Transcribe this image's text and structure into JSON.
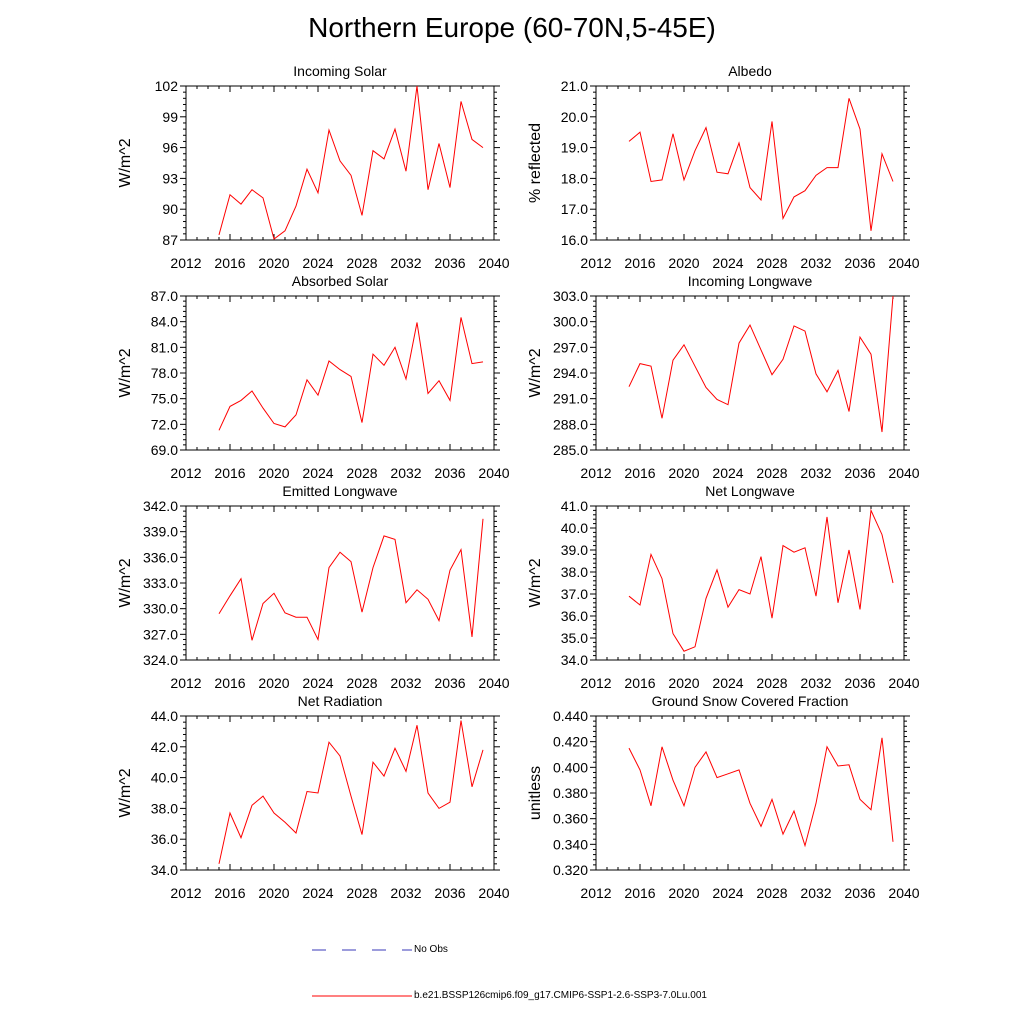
{
  "title": "Northern Europe (60-70N,5-45E)",
  "x_ticks": [
    "2012",
    "2016",
    "2020",
    "2024",
    "2028",
    "2032",
    "2036",
    "2040"
  ],
  "legend": {
    "obs_label": "No Obs",
    "obs_color": "#3a3ab8",
    "model_label": "b.e21.BSSP126cmip6.f09_g17.CMIP6-SSP1-2.6-SSP3-7.0Lu.001",
    "model_color": "#ff0000"
  },
  "chart_data": [
    {
      "type": "line",
      "title": "Incoming Solar",
      "ylabel": "W/m^2",
      "xlim": [
        2012,
        2040
      ],
      "ylim": [
        87,
        102
      ],
      "yticks": [
        87,
        90,
        93,
        96,
        99,
        102
      ],
      "ytick_labels": [
        "87",
        "90",
        "93",
        "96",
        "99",
        "102"
      ],
      "x": [
        2015,
        2016,
        2017,
        2018,
        2019,
        2020,
        2021,
        2022,
        2023,
        2024,
        2025,
        2026,
        2027,
        2028,
        2029,
        2030,
        2031,
        2032,
        2033,
        2034,
        2035,
        2036,
        2037,
        2038,
        2039
      ],
      "series": [
        {
          "values": [
            87.5,
            91.4,
            90.5,
            91.9,
            91.1,
            87.1,
            87.9,
            90.3,
            93.9,
            91.6,
            97.7,
            94.7,
            93.3,
            89.4,
            95.7,
            94.9,
            97.8,
            93.7,
            102.0,
            91.9,
            96.4,
            92.1,
            100.5,
            96.8,
            96.0
          ]
        }
      ]
    },
    {
      "type": "line",
      "title": "Albedo",
      "ylabel": "% reflected",
      "xlim": [
        2012,
        2040
      ],
      "ylim": [
        16.0,
        21.0
      ],
      "yticks": [
        16,
        17,
        18,
        19,
        20,
        21
      ],
      "ytick_labels": [
        "16.0",
        "17.0",
        "18.0",
        "19.0",
        "20.0",
        "21.0"
      ],
      "x": [
        2015,
        2016,
        2017,
        2018,
        2019,
        2020,
        2021,
        2022,
        2023,
        2024,
        2025,
        2026,
        2027,
        2028,
        2029,
        2030,
        2031,
        2032,
        2033,
        2034,
        2035,
        2036,
        2037,
        2038,
        2039
      ],
      "series": [
        {
          "values": [
            19.2,
            19.5,
            17.9,
            17.95,
            19.45,
            17.95,
            18.9,
            19.65,
            18.2,
            18.15,
            19.15,
            17.7,
            17.3,
            19.85,
            16.7,
            17.4,
            17.6,
            18.1,
            18.35,
            18.35,
            20.6,
            19.6,
            16.3,
            18.8,
            17.9
          ]
        }
      ]
    },
    {
      "type": "line",
      "title": "Absorbed Solar",
      "ylabel": "W/m^2",
      "xlim": [
        2012,
        2040
      ],
      "ylim": [
        69.0,
        87.0
      ],
      "yticks": [
        69,
        72,
        75,
        78,
        81,
        84,
        87
      ],
      "ytick_labels": [
        "69.0",
        "72.0",
        "75.0",
        "78.0",
        "81.0",
        "84.0",
        "87.0"
      ],
      "x": [
        2015,
        2016,
        2017,
        2018,
        2019,
        2020,
        2021,
        2022,
        2023,
        2024,
        2025,
        2026,
        2027,
        2028,
        2029,
        2030,
        2031,
        2032,
        2033,
        2034,
        2035,
        2036,
        2037,
        2038,
        2039
      ],
      "series": [
        {
          "values": [
            71.3,
            74.1,
            74.8,
            75.9,
            73.9,
            72.1,
            71.7,
            73.1,
            77.2,
            75.4,
            79.4,
            78.4,
            77.6,
            72.2,
            80.2,
            78.9,
            81.0,
            77.3,
            83.9,
            75.6,
            77.1,
            74.8,
            84.5,
            79.1,
            79.3
          ]
        }
      ]
    },
    {
      "type": "line",
      "title": "Incoming Longwave",
      "ylabel": "W/m^2",
      "xlim": [
        2012,
        2040
      ],
      "ylim": [
        285.0,
        303.0
      ],
      "yticks": [
        285,
        288,
        291,
        294,
        297,
        300,
        303
      ],
      "ytick_labels": [
        "285.0",
        "288.0",
        "291.0",
        "294.0",
        "297.0",
        "300.0",
        "303.0"
      ],
      "x": [
        2015,
        2016,
        2017,
        2018,
        2019,
        2020,
        2021,
        2022,
        2023,
        2024,
        2025,
        2026,
        2027,
        2028,
        2029,
        2030,
        2031,
        2032,
        2033,
        2034,
        2035,
        2036,
        2037,
        2038,
        2039
      ],
      "series": [
        {
          "values": [
            292.4,
            295.1,
            294.8,
            288.7,
            295.5,
            297.3,
            294.8,
            292.3,
            290.9,
            290.3,
            297.5,
            299.6,
            296.7,
            293.8,
            295.6,
            299.5,
            298.9,
            293.9,
            291.8,
            294.3,
            289.5,
            298.2,
            296.2,
            287.1,
            303.0
          ]
        }
      ]
    },
    {
      "type": "line",
      "title": "Emitted Longwave",
      "ylabel": "W/m^2",
      "xlim": [
        2012,
        2040
      ],
      "ylim": [
        324.0,
        342.0
      ],
      "yticks": [
        324,
        327,
        330,
        333,
        336,
        339,
        342
      ],
      "ytick_labels": [
        "324.0",
        "327.0",
        "330.0",
        "333.0",
        "336.0",
        "339.0",
        "342.0"
      ],
      "x": [
        2015,
        2016,
        2017,
        2018,
        2019,
        2020,
        2021,
        2022,
        2023,
        2024,
        2025,
        2026,
        2027,
        2028,
        2029,
        2030,
        2031,
        2032,
        2033,
        2034,
        2035,
        2036,
        2037,
        2038,
        2039
      ],
      "series": [
        {
          "values": [
            329.4,
            331.5,
            333.5,
            326.3,
            330.6,
            331.8,
            329.5,
            329.0,
            329.0,
            326.4,
            334.8,
            336.6,
            335.5,
            329.6,
            334.8,
            338.5,
            338.1,
            330.7,
            332.2,
            331.1,
            328.6,
            334.5,
            336.9,
            326.7,
            340.5
          ]
        }
      ]
    },
    {
      "type": "line",
      "title": "Net Longwave",
      "ylabel": "W/m^2",
      "xlim": [
        2012,
        2040
      ],
      "ylim": [
        34.0,
        41.0
      ],
      "yticks": [
        34,
        35,
        36,
        37,
        38,
        39,
        40,
        41
      ],
      "ytick_labels": [
        "34.0",
        "35.0",
        "36.0",
        "37.0",
        "38.0",
        "39.0",
        "40.0",
        "41.0"
      ],
      "x": [
        2015,
        2016,
        2017,
        2018,
        2019,
        2020,
        2021,
        2022,
        2023,
        2024,
        2025,
        2026,
        2027,
        2028,
        2029,
        2030,
        2031,
        2032,
        2033,
        2034,
        2035,
        2036,
        2037,
        2038,
        2039
      ],
      "series": [
        {
          "values": [
            36.9,
            36.5,
            38.8,
            37.7,
            35.2,
            34.4,
            34.6,
            36.8,
            38.1,
            36.4,
            37.2,
            37.0,
            38.7,
            35.9,
            39.2,
            38.9,
            39.1,
            36.9,
            40.5,
            36.6,
            39.0,
            36.3,
            40.8,
            39.7,
            37.5
          ]
        }
      ]
    },
    {
      "type": "line",
      "title": "Net Radiation",
      "ylabel": "W/m^2",
      "xlim": [
        2012,
        2040
      ],
      "ylim": [
        34.0,
        44.0
      ],
      "yticks": [
        34,
        36,
        38,
        40,
        42,
        44
      ],
      "ytick_labels": [
        "34.0",
        "36.0",
        "38.0",
        "40.0",
        "42.0",
        "44.0"
      ],
      "x": [
        2015,
        2016,
        2017,
        2018,
        2019,
        2020,
        2021,
        2022,
        2023,
        2024,
        2025,
        2026,
        2027,
        2028,
        2029,
        2030,
        2031,
        2032,
        2033,
        2034,
        2035,
        2036,
        2037,
        2038,
        2039
      ],
      "series": [
        {
          "values": [
            34.4,
            37.7,
            36.1,
            38.2,
            38.8,
            37.7,
            37.1,
            36.4,
            39.1,
            39.0,
            42.3,
            41.4,
            38.8,
            36.3,
            41.0,
            40.1,
            41.9,
            40.4,
            43.4,
            39.0,
            38.0,
            38.4,
            43.7,
            39.4,
            41.8
          ]
        }
      ]
    },
    {
      "type": "line",
      "title": "Ground Snow Covered Fraction",
      "ylabel": "unitless",
      "xlim": [
        2012,
        2040
      ],
      "ylim": [
        0.32,
        0.44
      ],
      "yticks": [
        0.32,
        0.34,
        0.36,
        0.38,
        0.4,
        0.42,
        0.44
      ],
      "ytick_labels": [
        "0.320",
        "0.340",
        "0.360",
        "0.380",
        "0.400",
        "0.420",
        "0.440"
      ],
      "x": [
        2015,
        2016,
        2017,
        2018,
        2019,
        2020,
        2021,
        2022,
        2023,
        2024,
        2025,
        2026,
        2027,
        2028,
        2029,
        2030,
        2031,
        2032,
        2033,
        2034,
        2035,
        2036,
        2037,
        2038,
        2039
      ],
      "series": [
        {
          "values": [
            0.415,
            0.398,
            0.37,
            0.416,
            0.39,
            0.37,
            0.4,
            0.412,
            0.392,
            0.395,
            0.398,
            0.372,
            0.354,
            0.375,
            0.348,
            0.366,
            0.339,
            0.372,
            0.416,
            0.401,
            0.402,
            0.375,
            0.367,
            0.423,
            0.342
          ]
        }
      ]
    }
  ]
}
